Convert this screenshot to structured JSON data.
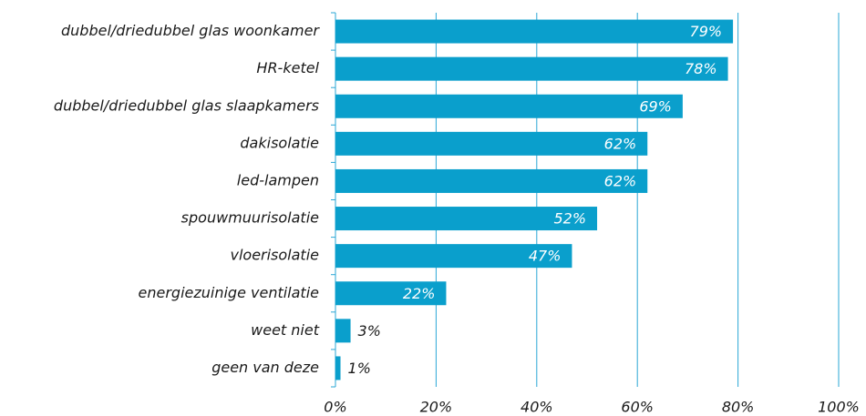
{
  "chart_data": {
    "type": "bar",
    "orientation": "horizontal",
    "categories": [
      "dubbel/driedubbel glas woonkamer",
      "HR-ketel",
      "dubbel/driedubbel glas slaapkamers",
      "dakisolatie",
      "led-lampen",
      "spouwmuurisolatie",
      "vloerisolatie",
      "energiezuinige ventilatie",
      "weet niet",
      "geen van deze"
    ],
    "values": [
      79,
      78,
      69,
      62,
      62,
      52,
      47,
      22,
      3,
      1
    ],
    "value_labels": [
      "79%",
      "78%",
      "69%",
      "62%",
      "62%",
      "52%",
      "47%",
      "22%",
      "3%",
      "1%"
    ],
    "color": "#0a9fcc",
    "xlim": [
      0,
      100
    ],
    "xticks": [
      {
        "value": 0,
        "label": "0%"
      },
      {
        "value": 20,
        "label": "20%"
      },
      {
        "value": 40,
        "label": "40%"
      },
      {
        "value": 60,
        "label": "60%"
      },
      {
        "value": 80,
        "label": "80%"
      },
      {
        "value": 100,
        "label": "100%"
      }
    ],
    "grid": true
  }
}
